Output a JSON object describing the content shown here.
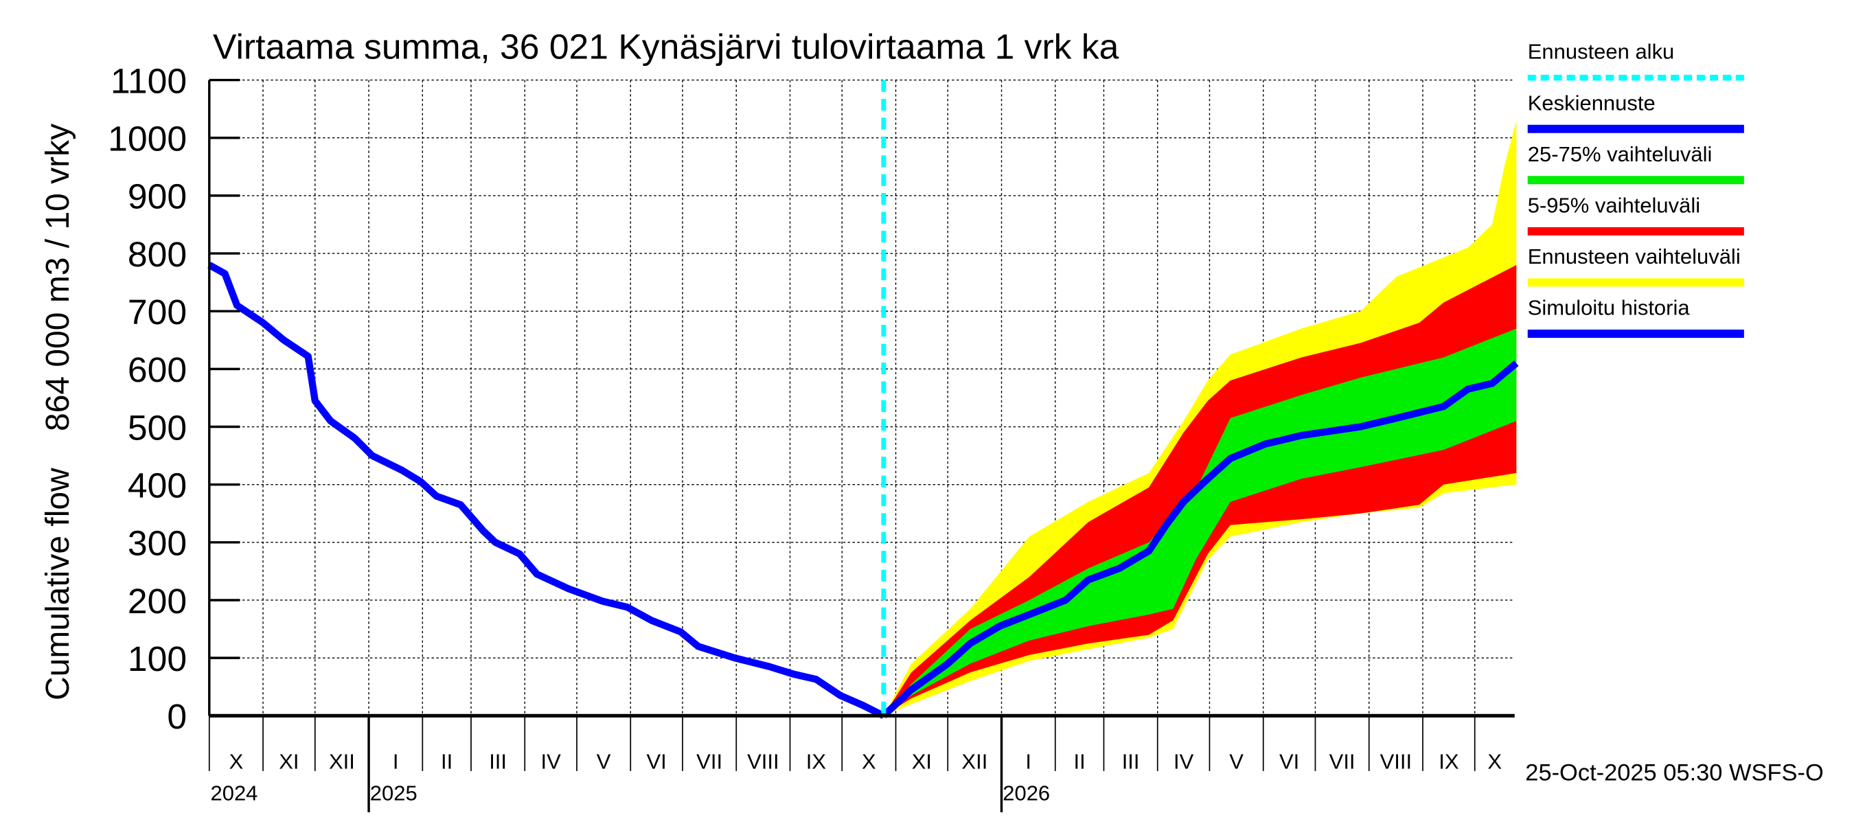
{
  "chart_data": {
    "type": "area",
    "title": "Virtaama summa, 36 021 Kynäsjärvi tulovirtaama 1 vrk ka",
    "ylabel": "Cumulative flow    864 000 m3 / 10 vrky",
    "ylim": [
      0,
      1100
    ],
    "yticks": [
      0,
      100,
      200,
      300,
      400,
      500,
      600,
      700,
      800,
      900,
      1000,
      1100
    ],
    "x_start_date": "2024-10-01",
    "x_end_date": "2026-10-24",
    "x_unit": "days since 2024-10-01",
    "grid": true,
    "forecast_start_day": 389,
    "month_labels": [
      "X",
      "XI",
      "XII",
      "I",
      "II",
      "III",
      "IV",
      "V",
      "VI",
      "VII",
      "VIII",
      "IX",
      "X",
      "XI",
      "XII",
      "I",
      "II",
      "III",
      "IV",
      "V",
      "VI",
      "VII",
      "VIII",
      "IX",
      "X"
    ],
    "year_labels": [
      {
        "label": "2024",
        "month_index": 0
      },
      {
        "label": "2025",
        "month_index": 3
      },
      {
        "label": "2026",
        "month_index": 15
      }
    ],
    "timestamp": "25-Oct-2025 05:30 WSFS-O",
    "legend": [
      {
        "label": "Ennusteen alku",
        "color": "#00ffff",
        "style": "dashed"
      },
      {
        "label": "Keskiennuste",
        "color": "#0000ff",
        "style": "line"
      },
      {
        "label": "25-75% vaihteluväli",
        "color": "#00ee00",
        "style": "band"
      },
      {
        "label": "5-95% vaihteluväli",
        "color": "#ff0000",
        "style": "band"
      },
      {
        "label": "Ennusteen vaihteluväli",
        "color": "#ffff00",
        "style": "band"
      },
      {
        "label": "Simuloitu historia",
        "color": "#0000ff",
        "style": "line"
      }
    ],
    "series": [
      {
        "name": "Simuloitu historia",
        "color": "#0000ff",
        "x": [
          0,
          9,
          16,
          31,
          43,
          57,
          61,
          70,
          84,
          94,
          111,
          122,
          131,
          145,
          158,
          165,
          179,
          189,
          207,
          227,
          241,
          255,
          272,
          282,
          303,
          323,
          337,
          350,
          364,
          377,
          389
        ],
        "y": [
          780,
          765,
          710,
          680,
          650,
          622,
          545,
          510,
          480,
          450,
          425,
          405,
          380,
          365,
          320,
          300,
          280,
          245,
          220,
          198,
          188,
          165,
          145,
          120,
          100,
          85,
          72,
          63,
          35,
          18,
          0
        ]
      },
      {
        "name": "Keskiennuste",
        "color": "#0000ff",
        "x": [
          389,
          405,
          426,
          439,
          456,
          473,
          494,
          507,
          525,
          542,
          552,
          562,
          569,
          576,
          589,
          609,
          630,
          664,
          685,
          712,
          726,
          740,
          754
        ],
        "y": [
          0,
          45,
          90,
          125,
          155,
          175,
          200,
          235,
          255,
          285,
          330,
          370,
          390,
          410,
          445,
          470,
          485,
          500,
          515,
          535,
          565,
          575,
          610
        ]
      }
    ],
    "bands": [
      {
        "name": "Ennusteen vaihteluväli",
        "color": "#ffff00",
        "upper": {
          "x": [
            389,
            405,
            439,
            473,
            507,
            542,
            562,
            576,
            589,
            630,
            664,
            685,
            726,
            740,
            747,
            754
          ],
          "y": [
            0,
            90,
            185,
            310,
            370,
            420,
            510,
            580,
            625,
            670,
            700,
            760,
            810,
            850,
            950,
            1030
          ]
        },
        "lower": {
          "x": [
            389,
            405,
            439,
            473,
            507,
            542,
            556,
            576,
            589,
            630,
            664,
            698,
            712,
            754
          ],
          "y": [
            0,
            20,
            60,
            95,
            115,
            135,
            150,
            270,
            310,
            335,
            350,
            360,
            385,
            400
          ]
        }
      },
      {
        "name": "5-95% vaihteluväli",
        "color": "#ff0000",
        "upper": {
          "x": [
            389,
            405,
            439,
            473,
            507,
            542,
            562,
            576,
            589,
            630,
            664,
            698,
            712,
            754
          ],
          "y": [
            0,
            75,
            165,
            240,
            335,
            395,
            490,
            545,
            580,
            620,
            645,
            680,
            715,
            780
          ]
        },
        "lower": {
          "x": [
            389,
            405,
            439,
            473,
            507,
            542,
            556,
            576,
            589,
            630,
            664,
            698,
            712,
            754
          ],
          "y": [
            0,
            30,
            75,
            105,
            125,
            140,
            165,
            280,
            330,
            340,
            350,
            365,
            400,
            420
          ]
        }
      },
      {
        "name": "25-75% vaihteluväli",
        "color": "#00ee00",
        "upper": {
          "x": [
            389,
            405,
            439,
            473,
            507,
            542,
            569,
            589,
            630,
            664,
            712,
            754
          ],
          "y": [
            0,
            55,
            150,
            200,
            255,
            300,
            390,
            515,
            555,
            585,
            620,
            670
          ]
        },
        "lower": {
          "x": [
            389,
            405,
            439,
            473,
            507,
            542,
            556,
            569,
            589,
            630,
            664,
            712,
            754
          ],
          "y": [
            0,
            35,
            90,
            130,
            155,
            175,
            185,
            270,
            370,
            410,
            430,
            460,
            510
          ]
        }
      }
    ]
  }
}
